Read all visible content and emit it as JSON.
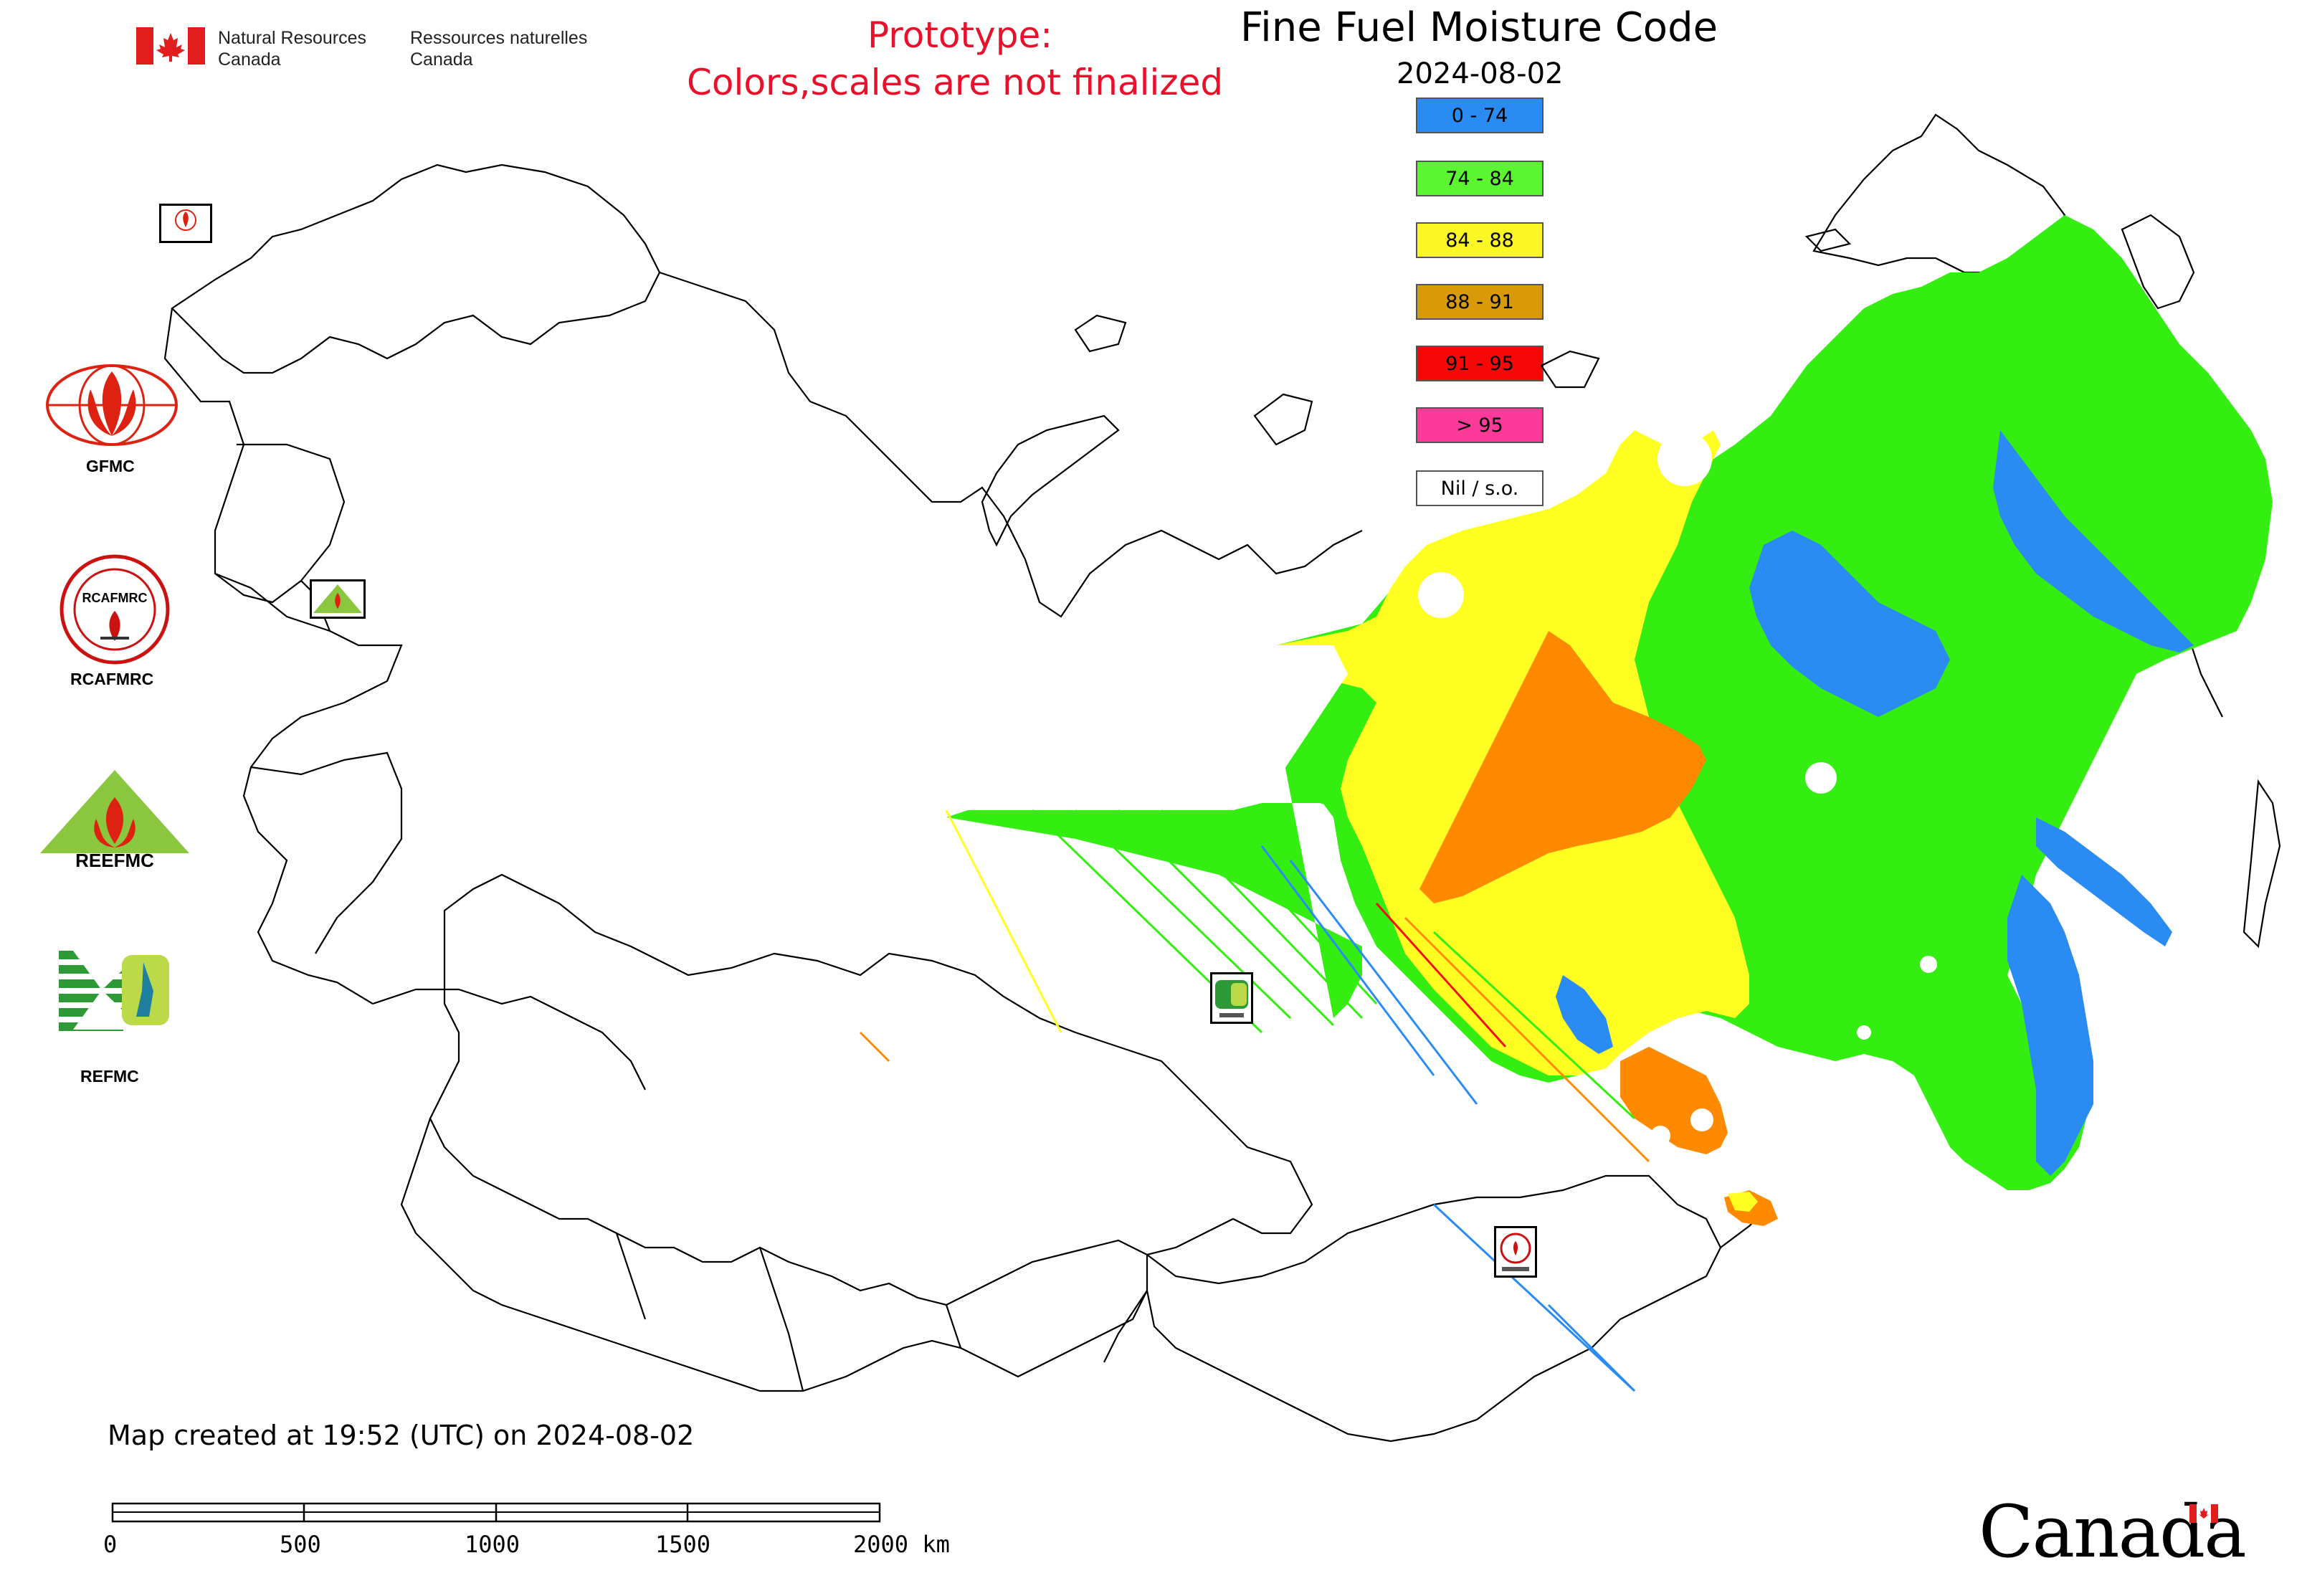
{
  "header": {
    "title": "Fine Fuel Moisture Code",
    "date": "2024-08-02",
    "prototype_line1": "Prototype:",
    "prototype_line2": "Colors,scales are not finalized",
    "prototype_color": "#e8102a"
  },
  "agency": {
    "name_en": "Natural Resources\nCanada",
    "name_en_l1": "Natural Resources",
    "name_en_l2": "Canada",
    "name_fr_l1": "Ressources naturelles",
    "name_fr_l2": "Canada",
    "flag_icon": "canada-flag-icon",
    "wordmark": "Canada"
  },
  "legend": {
    "items": [
      {
        "label": "0 - 74",
        "color": "#2a8cf2"
      },
      {
        "label": "74 - 84",
        "color": "#5cf531"
      },
      {
        "label": "84 - 88",
        "color": "#fbf727"
      },
      {
        "label": "88 - 91",
        "color": "#d99a0a"
      },
      {
        "label": "91 - 95",
        "color": "#f60808"
      },
      {
        "label": "> 95",
        "color": "#fb3a9a"
      },
      {
        "label": "Nil / s.o.",
        "color": "#ffffff"
      }
    ]
  },
  "map_colors": {
    "blue": "#2a8cf2",
    "green": "#33ee10",
    "yellow": "#ffff22",
    "orange": "#ff8a00",
    "red": "#f51010",
    "outline": "#000000"
  },
  "logos": {
    "gfmc": "GFMC",
    "rcafmrc": "RCAFMRC",
    "reefmc": "REEFMC",
    "refmc": "REFMC",
    "rcafmrc_ring_text": "RCAFMRC",
    "reefmc_text": "REEFMC"
  },
  "footer": {
    "created": "Map created at 19:52 (UTC) on 2024-08-02"
  },
  "scale_bar": {
    "labels": [
      "0",
      "500",
      "1000",
      "1500",
      "2000 km"
    ],
    "unit": "km"
  }
}
